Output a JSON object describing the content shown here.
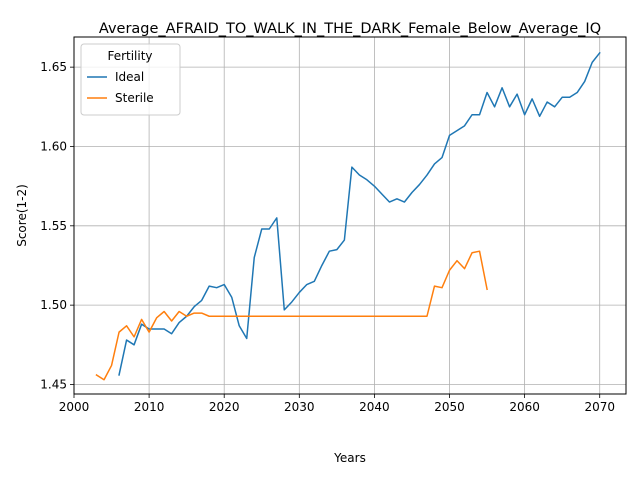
{
  "chart_data": {
    "type": "line",
    "title": "Average_AFRAID_TO_WALK_IN_THE_DARK_Female_Below_Average_IQ",
    "xlabel": "Years",
    "ylabel": "Score(1-2)",
    "xlim": [
      2000,
      2073.5
    ],
    "ylim": [
      1.444,
      1.669
    ],
    "xticks": [
      2000,
      2010,
      2020,
      2030,
      2040,
      2050,
      2060,
      2070
    ],
    "yticks": [
      1.45,
      1.5,
      1.55,
      1.6,
      1.65
    ],
    "xtick_labels": [
      "2000",
      "2010",
      "2020",
      "2030",
      "2040",
      "2050",
      "2060",
      "2070"
    ],
    "ytick_labels": [
      "1.45",
      "1.50",
      "1.55",
      "1.60",
      "1.65"
    ],
    "grid": true,
    "legend": {
      "title": "Fertility",
      "position": "upper-left"
    },
    "series": [
      {
        "name": "Ideal",
        "color": "#1f77b4",
        "x": [
          2006,
          2007,
          2008,
          2009,
          2010,
          2011,
          2012,
          2013,
          2014,
          2015,
          2016,
          2017,
          2018,
          2019,
          2020,
          2021,
          2022,
          2023,
          2024,
          2025,
          2026,
          2027,
          2028,
          2029,
          2030,
          2031,
          2032,
          2033,
          2034,
          2035,
          2036,
          2037,
          2038,
          2039,
          2040,
          2041,
          2042,
          2043,
          2044,
          2045,
          2046,
          2047,
          2048,
          2049,
          2050,
          2051,
          2052,
          2053,
          2054,
          2055,
          2056,
          2057,
          2058,
          2059,
          2060,
          2061,
          2062,
          2063,
          2064,
          2065,
          2066,
          2067,
          2068,
          2069,
          2070
        ],
        "y": [
          1.456,
          1.478,
          1.475,
          1.488,
          1.485,
          1.485,
          1.485,
          1.482,
          1.489,
          1.493,
          1.499,
          1.503,
          1.512,
          1.511,
          1.513,
          1.505,
          1.487,
          1.479,
          1.53,
          1.548,
          1.548,
          1.555,
          1.497,
          1.502,
          1.508,
          1.513,
          1.515,
          1.525,
          1.534,
          1.535,
          1.541,
          1.587,
          1.582,
          1.579,
          1.575,
          1.57,
          1.565,
          1.567,
          1.565,
          1.571,
          1.576,
          1.582,
          1.589,
          1.593,
          1.607,
          1.61,
          1.613,
          1.62,
          1.62,
          1.634,
          1.625,
          1.637,
          1.625,
          1.633,
          1.62,
          1.63,
          1.619,
          1.628,
          1.625,
          1.631,
          1.631,
          1.634,
          1.641,
          1.653,
          1.659
        ]
      },
      {
        "name": "Sterile",
        "color": "#ff7f0e",
        "x": [
          2003,
          2004,
          2005,
          2006,
          2007,
          2008,
          2009,
          2010,
          2011,
          2012,
          2013,
          2014,
          2015,
          2016,
          2017,
          2018,
          2019,
          2020,
          2021,
          2022,
          2023,
          2024,
          2025,
          2026,
          2027,
          2028,
          2029,
          2030,
          2031,
          2032,
          2033,
          2034,
          2035,
          2036,
          2037,
          2038,
          2039,
          2040,
          2041,
          2042,
          2043,
          2044,
          2045,
          2046,
          2047,
          2048,
          2049,
          2050,
          2051,
          2052,
          2053,
          2054,
          2055
        ],
        "y": [
          1.456,
          1.453,
          1.462,
          1.483,
          1.487,
          1.48,
          1.491,
          1.483,
          1.492,
          1.496,
          1.49,
          1.496,
          1.493,
          1.495,
          1.495,
          1.493,
          1.493,
          1.493,
          1.493,
          1.493,
          1.493,
          1.493,
          1.493,
          1.493,
          1.493,
          1.493,
          1.493,
          1.493,
          1.493,
          1.493,
          1.493,
          1.493,
          1.493,
          1.493,
          1.493,
          1.493,
          1.493,
          1.493,
          1.493,
          1.493,
          1.493,
          1.493,
          1.493,
          1.493,
          1.493,
          1.512,
          1.511,
          1.522,
          1.528,
          1.523,
          1.533,
          1.534,
          1.51
        ]
      }
    ]
  }
}
